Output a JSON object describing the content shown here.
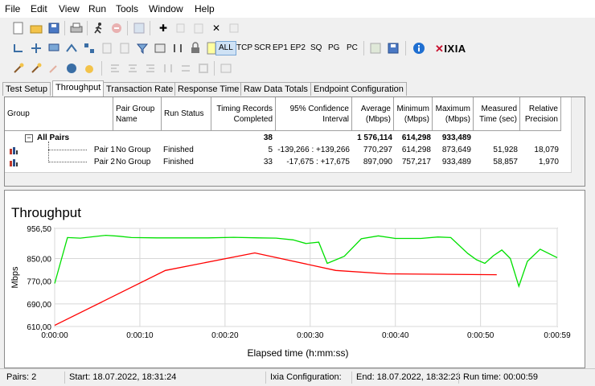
{
  "menu": [
    "File",
    "Edit",
    "View",
    "Run",
    "Tools",
    "Window",
    "Help"
  ],
  "toolbar2": {
    "filters": [
      "ALL",
      "TCP",
      "SCR",
      "EP1",
      "EP2",
      "SQ",
      "PG",
      "PC"
    ],
    "brand": "IXIA"
  },
  "tabs": [
    "Test Setup",
    "Throughput",
    "Transaction Rate",
    "Response Time",
    "Raw Data Totals",
    "Endpoint Configuration"
  ],
  "grid": {
    "headers": [
      "Group",
      "Pair Group Name",
      "Run Status",
      "Timing Records Completed",
      "95% Confidence Interval",
      "Average (Mbps)",
      "Minimum (Mbps)",
      "Maximum (Mbps)",
      "Measured Time (sec)",
      "Relative Precision"
    ],
    "all_pairs": {
      "label": "All Pairs",
      "records": "38",
      "average": "1 576,114",
      "minimum": "614,298",
      "maximum": "933,489"
    },
    "rows": [
      {
        "pair": "Pair 1",
        "group": "No Group",
        "status": "Finished",
        "records": "5",
        "ci": "-139,266 : +139,266",
        "average": "770,297",
        "minimum": "614,298",
        "maximum": "873,649",
        "time": "51,928",
        "precision": "18,079"
      },
      {
        "pair": "Pair 2",
        "group": "No Group",
        "status": "Finished",
        "records": "33",
        "ci": "-17,675 : +17,675",
        "average": "897,090",
        "minimum": "757,217",
        "maximum": "933,489",
        "time": "58,857",
        "precision": "1,970"
      }
    ]
  },
  "chart_data": {
    "type": "line",
    "title": "Throughput",
    "xlabel": "Elapsed time (h:mm:ss)",
    "ylabel": "Mbps",
    "ylim": [
      610,
      956.5
    ],
    "xlim": [
      0,
      59
    ],
    "y_ticks": [
      "610,00",
      "690,00",
      "770,00",
      "850,00",
      "956,50"
    ],
    "y_tick_values": [
      610,
      690,
      770,
      850,
      956.5
    ],
    "x_ticks": [
      "0:00:00",
      "0:00:10",
      "0:00:20",
      "0:00:30",
      "0:00:40",
      "0:00:50",
      "0:00:59"
    ],
    "x_tick_values": [
      0,
      10,
      20,
      30,
      40,
      50,
      59
    ],
    "grid": true,
    "series": [
      {
        "color": "#ff0000",
        "x": [
          0,
          13,
          23.5,
          33,
          39,
          51.9
        ],
        "y": [
          614,
          808,
          870,
          808,
          796,
          793
        ]
      },
      {
        "color": "#00e000",
        "x": [
          0,
          1.5,
          3,
          4.5,
          6,
          7.5,
          9,
          12,
          15,
          18,
          21,
          24,
          26,
          28,
          29.5,
          31,
          32,
          34,
          36,
          38,
          40,
          43,
          45,
          46.5,
          48.5,
          49.5,
          50.5,
          51.5,
          52.5,
          53.5,
          54.5,
          55.5,
          57,
          59
        ],
        "y": [
          762,
          924,
          922,
          927,
          932,
          929,
          924,
          923,
          923,
          923,
          925,
          923,
          922,
          916,
          903,
          908,
          833,
          858,
          920,
          930,
          921,
          921,
          926,
          924,
          868,
          846,
          833,
          860,
          880,
          850,
          752,
          840,
          883,
          853
        ]
      }
    ]
  },
  "status": {
    "pairs": "Pairs: 2",
    "start": "Start: 18.07.2022, 18:31:24",
    "config": "Ixia Configuration:",
    "end": "End: 18.07.2022, 18:32:23",
    "runtime": "Run time: 00:00:59"
  }
}
